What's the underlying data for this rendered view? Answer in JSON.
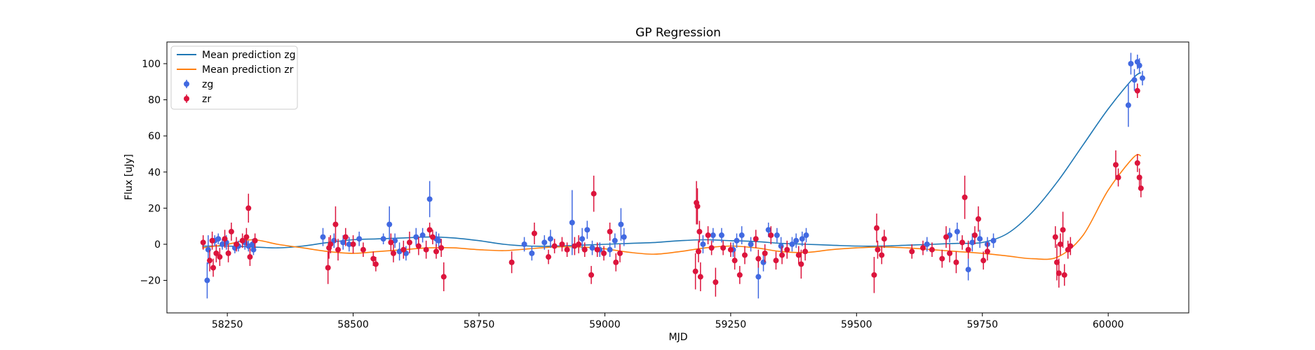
{
  "chart_data": {
    "type": "scatter",
    "title": "GP Regression",
    "xlabel": "MJD",
    "ylabel": "Flux [uJy]",
    "xlim": [
      58130,
      60160
    ],
    "ylim": [
      -38,
      112
    ],
    "xticks": [
      58250,
      58500,
      58750,
      59000,
      59250,
      59500,
      59750,
      60000
    ],
    "yticks": [
      -20,
      0,
      20,
      40,
      60,
      80,
      100
    ],
    "grid": false,
    "legend": "top-left",
    "colors": {
      "zg": "#4169e1",
      "zr": "#dc143c",
      "mean_zg": "#1f77b4",
      "mean_zr": "#ff7f0e"
    },
    "lines": [
      {
        "name": "Mean prediction zg",
        "color": "#1f77b4",
        "x": [
          58200,
          58250,
          58300,
          58350,
          58400,
          58450,
          58500,
          58550,
          58600,
          58650,
          58700,
          58750,
          58800,
          58850,
          58900,
          58950,
          59000,
          59050,
          59100,
          59150,
          59200,
          59250,
          59300,
          59350,
          59400,
          59450,
          59500,
          59550,
          59600,
          59650,
          59700,
          59750,
          59800,
          59850,
          59900,
          59950,
          60000,
          60050,
          60065
        ],
        "y": [
          -1,
          -1,
          -1.5,
          -2,
          -1,
          1,
          2.5,
          3,
          3.5,
          4,
          3.5,
          2,
          0,
          -1,
          -1,
          -0.5,
          0,
          0.5,
          1,
          2,
          2.5,
          2,
          1.5,
          0.5,
          0,
          -0.5,
          -1,
          -1,
          -0.5,
          0,
          0.5,
          1,
          6,
          18,
          35,
          55,
          75,
          92,
          95
        ]
      },
      {
        "name": "Mean prediction zr",
        "color": "#ff7f0e",
        "x": [
          58200,
          58250,
          58300,
          58350,
          58400,
          58450,
          58500,
          58550,
          58600,
          58650,
          58700,
          58750,
          58800,
          58850,
          58900,
          58950,
          59000,
          59050,
          59100,
          59150,
          59200,
          59250,
          59300,
          59350,
          59400,
          59450,
          59500,
          59550,
          59600,
          59650,
          59700,
          59750,
          59800,
          59850,
          59900,
          59950,
          60000,
          60050,
          60065
        ],
        "y": [
          -2,
          0,
          2.5,
          0,
          -2,
          -4,
          -5,
          -4,
          -3,
          -2,
          -2,
          -3,
          -3.5,
          -2.5,
          -1.5,
          -1.5,
          -2.5,
          -4.5,
          -5.5,
          -4,
          -2,
          -1,
          -2,
          -4,
          -4.5,
          -3,
          -2,
          -1.5,
          -2,
          -3,
          -4,
          -5,
          -6.5,
          -8,
          -7,
          5,
          30,
          48,
          49
        ]
      }
    ],
    "series": [
      {
        "name": "zg",
        "color": "#4169e1",
        "points": [
          [
            58210,
            -20,
            10
          ],
          [
            58212,
            -3,
            8
          ],
          [
            58225,
            2,
            3
          ],
          [
            58232,
            3,
            3
          ],
          [
            58240,
            0,
            3
          ],
          [
            58248,
            1,
            4
          ],
          [
            58265,
            -2,
            3
          ],
          [
            58272,
            -1,
            3
          ],
          [
            58285,
            1,
            4
          ],
          [
            58292,
            -1,
            3
          ],
          [
            58302,
            -3,
            3
          ],
          [
            58300,
            0,
            3
          ],
          [
            58440,
            4,
            5
          ],
          [
            58462,
            2,
            4
          ],
          [
            58480,
            1,
            4
          ],
          [
            58492,
            0,
            4
          ],
          [
            58512,
            3,
            4
          ],
          [
            58560,
            3,
            3
          ],
          [
            58572,
            11,
            10
          ],
          [
            58583,
            2,
            4
          ],
          [
            58592,
            -4,
            5
          ],
          [
            58605,
            -5,
            4
          ],
          [
            58625,
            4,
            5
          ],
          [
            58638,
            5,
            4
          ],
          [
            58652,
            25,
            10
          ],
          [
            58665,
            3,
            4
          ],
          [
            58670,
            2,
            4
          ],
          [
            58840,
            0,
            4
          ],
          [
            58855,
            -5,
            4
          ],
          [
            58880,
            1,
            4
          ],
          [
            58892,
            3,
            5
          ],
          [
            58935,
            12,
            18
          ],
          [
            58955,
            3,
            6
          ],
          [
            58965,
            8,
            5
          ],
          [
            58975,
            -2,
            4
          ],
          [
            58990,
            -3,
            4
          ],
          [
            59010,
            -3,
            4
          ],
          [
            59020,
            2,
            4
          ],
          [
            59032,
            11,
            9
          ],
          [
            59038,
            4,
            5
          ],
          [
            59195,
            0,
            5
          ],
          [
            59215,
            5,
            4
          ],
          [
            59232,
            5,
            4
          ],
          [
            59255,
            -3,
            4
          ],
          [
            59262,
            2,
            4
          ],
          [
            59272,
            5,
            5
          ],
          [
            59290,
            0,
            4
          ],
          [
            59305,
            -18,
            12
          ],
          [
            59315,
            -10,
            5
          ],
          [
            59325,
            8,
            4
          ],
          [
            59342,
            5,
            4
          ],
          [
            59350,
            -1,
            5
          ],
          [
            59372,
            0,
            4
          ],
          [
            59380,
            2,
            4
          ],
          [
            59392,
            3,
            4
          ],
          [
            59400,
            5,
            4
          ],
          [
            59640,
            0,
            4
          ],
          [
            59685,
            5,
            4
          ],
          [
            59700,
            7,
            5
          ],
          [
            59722,
            -14,
            6
          ],
          [
            59730,
            1,
            5
          ],
          [
            59745,
            3,
            5
          ],
          [
            59760,
            0,
            4
          ],
          [
            59772,
            2,
            4
          ],
          [
            60040,
            77,
            12
          ],
          [
            60045,
            100,
            6
          ],
          [
            60052,
            91,
            6
          ],
          [
            60058,
            101,
            4
          ],
          [
            60062,
            99,
            4
          ],
          [
            60068,
            92,
            4
          ]
        ]
      },
      {
        "name": "zr",
        "color": "#dc143c",
        "points": [
          [
            58202,
            1,
            4
          ],
          [
            58215,
            -9,
            6
          ],
          [
            58220,
            2,
            5
          ],
          [
            58222,
            -13,
            5
          ],
          [
            58228,
            -5,
            5
          ],
          [
            58235,
            -7,
            5
          ],
          [
            58245,
            3,
            5
          ],
          [
            58252,
            -5,
            5
          ],
          [
            58258,
            7,
            5
          ],
          [
            58268,
            0,
            4
          ],
          [
            58280,
            2,
            4
          ],
          [
            58288,
            4,
            5
          ],
          [
            58292,
            20,
            8
          ],
          [
            58295,
            -7,
            5
          ],
          [
            58305,
            2,
            4
          ],
          [
            58450,
            -13,
            9
          ],
          [
            58452,
            -2,
            6
          ],
          [
            58455,
            0,
            5
          ],
          [
            58465,
            11,
            10
          ],
          [
            58470,
            -3,
            6
          ],
          [
            58485,
            4,
            5
          ],
          [
            58500,
            0,
            5
          ],
          [
            58520,
            -3,
            4
          ],
          [
            58540,
            -8,
            4
          ],
          [
            58545,
            -11,
            4
          ],
          [
            58575,
            1,
            5
          ],
          [
            58580,
            -5,
            5
          ],
          [
            58600,
            -3,
            5
          ],
          [
            58612,
            1,
            6
          ],
          [
            58630,
            -1,
            5
          ],
          [
            58645,
            -3,
            5
          ],
          [
            58652,
            8,
            4
          ],
          [
            58658,
            4,
            4
          ],
          [
            58665,
            -4,
            4
          ],
          [
            58675,
            -2,
            5
          ],
          [
            58680,
            -18,
            8
          ],
          [
            58815,
            -10,
            6
          ],
          [
            58860,
            6,
            6
          ],
          [
            58888,
            -7,
            4
          ],
          [
            58900,
            -1,
            4
          ],
          [
            58915,
            0,
            4
          ],
          [
            58925,
            -3,
            4
          ],
          [
            58940,
            -1,
            5
          ],
          [
            58948,
            0,
            5
          ],
          [
            58960,
            -3,
            4
          ],
          [
            58973,
            -17,
            5
          ],
          [
            58978,
            28,
            10
          ],
          [
            58985,
            -3,
            4
          ],
          [
            58998,
            -5,
            4
          ],
          [
            59010,
            7,
            5
          ],
          [
            59022,
            -10,
            5
          ],
          [
            59030,
            -5,
            5
          ],
          [
            59180,
            -15,
            10
          ],
          [
            59182,
            23,
            12
          ],
          [
            59184,
            21,
            10
          ],
          [
            59186,
            -4,
            6
          ],
          [
            59188,
            7,
            6
          ],
          [
            59190,
            -18,
            8
          ],
          [
            59205,
            5,
            5
          ],
          [
            59212,
            -2,
            4
          ],
          [
            59220,
            -21,
            8
          ],
          [
            59235,
            -2,
            4
          ],
          [
            59250,
            -3,
            4
          ],
          [
            59258,
            -9,
            5
          ],
          [
            59268,
            -17,
            5
          ],
          [
            59278,
            -6,
            5
          ],
          [
            59300,
            3,
            5
          ],
          [
            59305,
            -8,
            5
          ],
          [
            59318,
            -5,
            5
          ],
          [
            59330,
            5,
            5
          ],
          [
            59340,
            -9,
            5
          ],
          [
            59352,
            -6,
            5
          ],
          [
            59362,
            -3,
            5
          ],
          [
            59385,
            -6,
            5
          ],
          [
            59390,
            -11,
            8
          ],
          [
            59398,
            -4,
            5
          ],
          [
            59535,
            -17,
            10
          ],
          [
            59540,
            9,
            8
          ],
          [
            59542,
            -3,
            5
          ],
          [
            59550,
            -6,
            5
          ],
          [
            59555,
            3,
            5
          ],
          [
            59610,
            -4,
            4
          ],
          [
            59632,
            -2,
            4
          ],
          [
            59650,
            -3,
            4
          ],
          [
            59670,
            -8,
            5
          ],
          [
            59678,
            4,
            6
          ],
          [
            59685,
            -5,
            5
          ],
          [
            59698,
            -10,
            6
          ],
          [
            59710,
            1,
            4
          ],
          [
            59715,
            26,
            12
          ],
          [
            59722,
            -3,
            5
          ],
          [
            59735,
            5,
            5
          ],
          [
            59742,
            14,
            7
          ],
          [
            59752,
            -9,
            5
          ],
          [
            59760,
            -4,
            5
          ],
          [
            59895,
            4,
            6
          ],
          [
            59898,
            -10,
            10
          ],
          [
            59902,
            -16,
            8
          ],
          [
            59905,
            0,
            6
          ],
          [
            59910,
            8,
            10
          ],
          [
            59913,
            -17,
            6
          ],
          [
            59920,
            -3,
            5
          ],
          [
            59925,
            -1,
            5
          ],
          [
            60015,
            44,
            8
          ],
          [
            60020,
            37,
            5
          ],
          [
            60058,
            45,
            5
          ],
          [
            60062,
            37,
            5
          ],
          [
            60065,
            31,
            5
          ],
          [
            60058,
            85,
            4
          ]
        ]
      }
    ]
  }
}
